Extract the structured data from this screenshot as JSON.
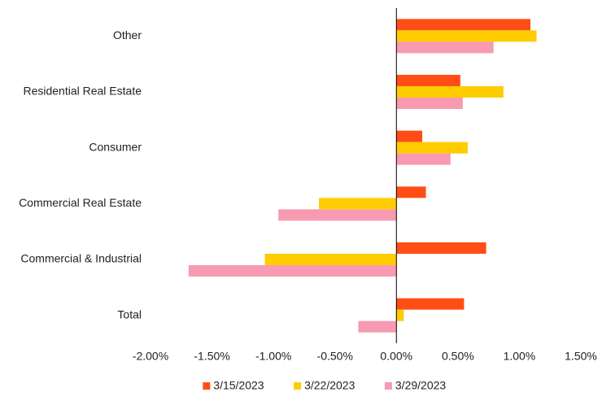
{
  "chart_data": {
    "type": "hbar",
    "categories": [
      "Other",
      "Residential Real Estate",
      "Consumer",
      "Commercial Real Estate",
      "Commercial & Industrial",
      "Total"
    ],
    "series": [
      {
        "name": "3/15/2023",
        "color": "#ff4e15",
        "values": [
          1.09,
          0.52,
          0.21,
          0.24,
          0.73,
          0.55
        ]
      },
      {
        "name": "3/22/2023",
        "color": "#ffcc00",
        "values": [
          1.14,
          0.87,
          0.58,
          -0.63,
          -1.07,
          0.06
        ]
      },
      {
        "name": "3/29/2023",
        "color": "#f79ab2",
        "values": [
          0.79,
          0.54,
          0.44,
          -0.96,
          -1.69,
          -0.31
        ]
      }
    ],
    "xlim": [
      -2,
      1.5
    ],
    "xticks": [
      {
        "value": -2,
        "label": "-2.00%"
      },
      {
        "value": -1.5,
        "label": "-1.50%"
      },
      {
        "value": -1,
        "label": "-1.00%"
      },
      {
        "value": -0.5,
        "label": "-0.50%"
      },
      {
        "value": 0,
        "label": "0.00%"
      },
      {
        "value": 0.5,
        "label": "0.50%"
      },
      {
        "value": 1,
        "label": "1.00%"
      },
      {
        "value": 1.5,
        "label": "1.50%"
      }
    ],
    "grid": false,
    "legend": "bottom"
  }
}
